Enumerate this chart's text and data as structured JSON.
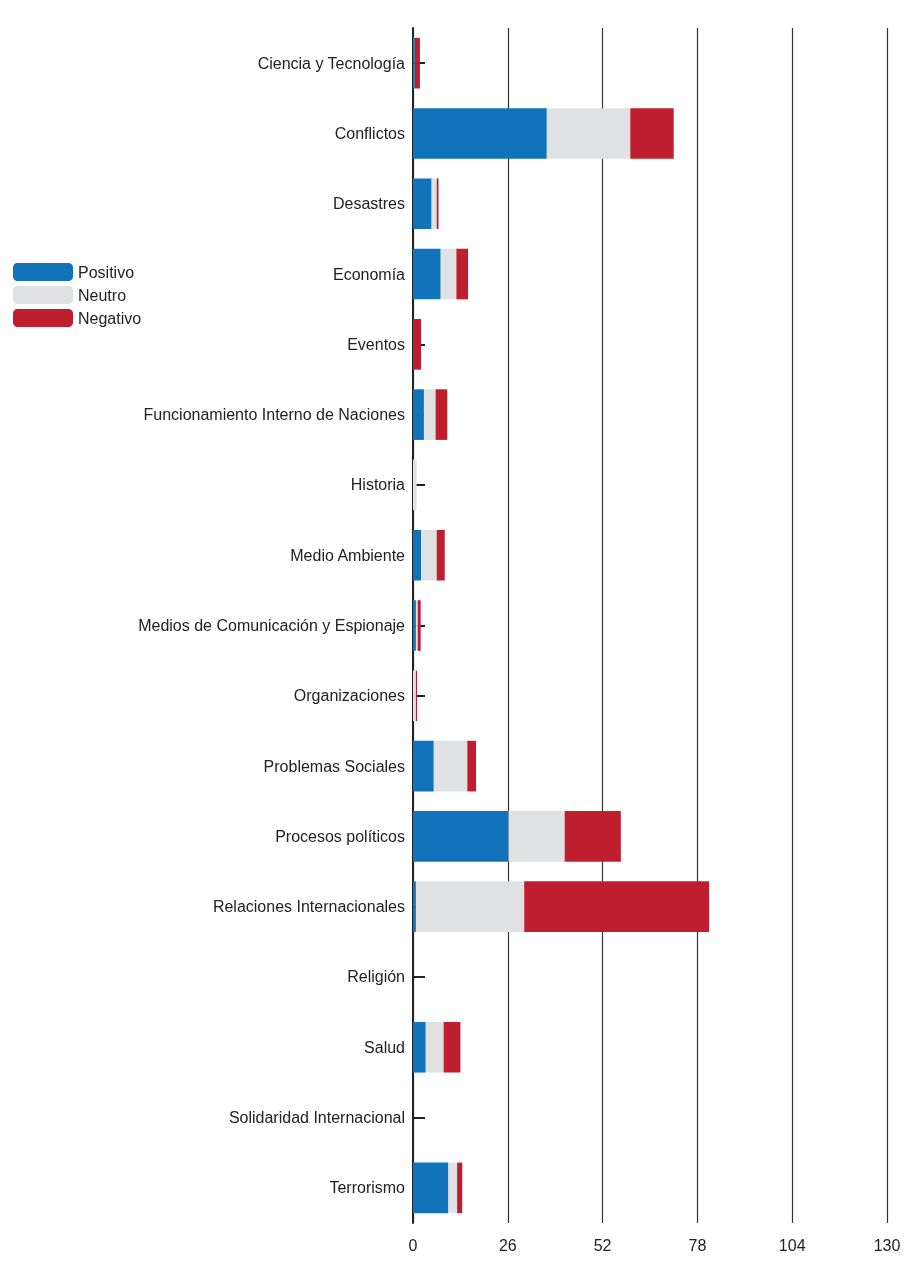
{
  "chart_data": {
    "type": "bar",
    "orientation": "horizontal",
    "stacked": true,
    "categories": [
      "Ciencia y Tecnología",
      "Conflictos",
      "Desastres",
      "Economía",
      "Eventos",
      "Funcionamiento Interno de Naciones",
      "Historia",
      "Medio Ambiente",
      "Medios de Comunicación y Espionaje",
      "Organizaciones",
      "Problemas Sociales",
      "Procesos políticos",
      "Relaciones Internacionales",
      "Religión",
      "Salud",
      "Solidaridad Internacional",
      "Terrorismo"
    ],
    "series": [
      {
        "name": "Positivo",
        "color": "#1174bb",
        "values": [
          0.5,
          36.7,
          5.1,
          7.6,
          0,
          3,
          0,
          2.2,
          0.8,
          0,
          5.7,
          26.2,
          0.8,
          0,
          3.5,
          0,
          9.7
        ]
      },
      {
        "name": "Neutro",
        "color": "#e0e1e3",
        "values": [
          0,
          22.9,
          1.4,
          4.3,
          0,
          3.2,
          1,
          4.3,
          0.5,
          0.8,
          9.2,
          15.4,
          29.7,
          0,
          4.9,
          0,
          2.4
        ]
      },
      {
        "name": "Negativo",
        "color": "#be1e2d",
        "values": [
          1.4,
          11.9,
          0.5,
          3.2,
          2.2,
          3.2,
          0,
          2.2,
          0.8,
          0.3,
          2.4,
          15.4,
          50.7,
          0,
          4.6,
          0,
          1.4
        ]
      }
    ],
    "xlim": [
      0,
      130
    ],
    "xticks": [
      0,
      26,
      52,
      78,
      104,
      130
    ],
    "grid": "x",
    "legend": "left"
  }
}
